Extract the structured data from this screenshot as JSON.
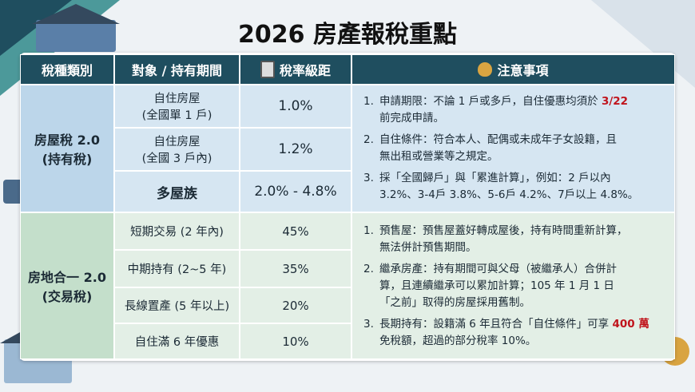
{
  "title": "2026 房產報稅重點",
  "headers": [
    "稅種類別",
    "對象 / 持有期間",
    "稅率級距",
    "注意事項"
  ],
  "sections": [
    {
      "name": [
        "房屋稅 2.0",
        "(持有稅)"
      ],
      "rows": [
        {
          "target": [
            "自住房屋",
            "(全國單 1 戶)"
          ],
          "rate": "1.0%"
        },
        {
          "target": [
            "自住房屋",
            "(全國 3 戶內)"
          ],
          "rate": "1.2%"
        },
        {
          "target": [
            "多屋族"
          ],
          "rate": "2.0% - 4.8%"
        }
      ],
      "notes": [
        {
          "num": "1.",
          "lines": [
            [
              "申請期限：不論 1 戶或多戶，自住優惠均須於 ",
              {
                "text": "3/22",
                "color": "#c0141c"
              }
            ],
            [
              "前完成申請。"
            ]
          ]
        },
        {
          "num": "2.",
          "lines": [
            [
              "自住條件：符合本人、配偶或未成年子女設籍，且"
            ],
            [
              "無出租或營業等之規定。"
            ]
          ]
        },
        {
          "num": "3.",
          "lines": [
            [
              "採「全國歸戶」與「累進計算」，例如：2 戶以內"
            ],
            [
              "3.2%、3-4戶 3.8%、5-6戶 4.2%、7戶以上 4.8%。"
            ]
          ]
        }
      ]
    },
    {
      "name": [
        "房地合一 2.0",
        "(交易稅)"
      ],
      "rows": [
        {
          "target": [
            "短期交易 (2 年內)"
          ],
          "rate": "45%"
        },
        {
          "target": [
            "中期持有 (2~5 年)"
          ],
          "rate": "35%"
        },
        {
          "target": [
            "長線置產 (5 年以上)"
          ],
          "rate": "20%"
        },
        {
          "target": [
            "自住滿 6 年優惠"
          ],
          "rate": "10%"
        }
      ],
      "notes": [
        {
          "num": "1.",
          "lines": [
            [
              "預售屋：預售屋蓋好轉成屋後，持有時間重新計算，"
            ],
            [
              "無法併計預售期間。"
            ]
          ]
        },
        {
          "num": "2.",
          "lines": [
            [
              "繼承房產：持有期間可與父母（被繼承人）合併計"
            ],
            [
              "算，且連續繼承可以累加計算；105 年 1 月 1 日"
            ],
            [
              "「之前」取得的房屋採用舊制。"
            ]
          ]
        },
        {
          "num": "3.",
          "lines": [
            [
              "長期持有：設籍滿 6 年且符合「自住條件」可享 ",
              {
                "text": "400 萬",
                "color": "#c0141c"
              }
            ],
            [
              "免稅額，超過的部分稅率 10%。"
            ]
          ]
        }
      ]
    }
  ]
}
